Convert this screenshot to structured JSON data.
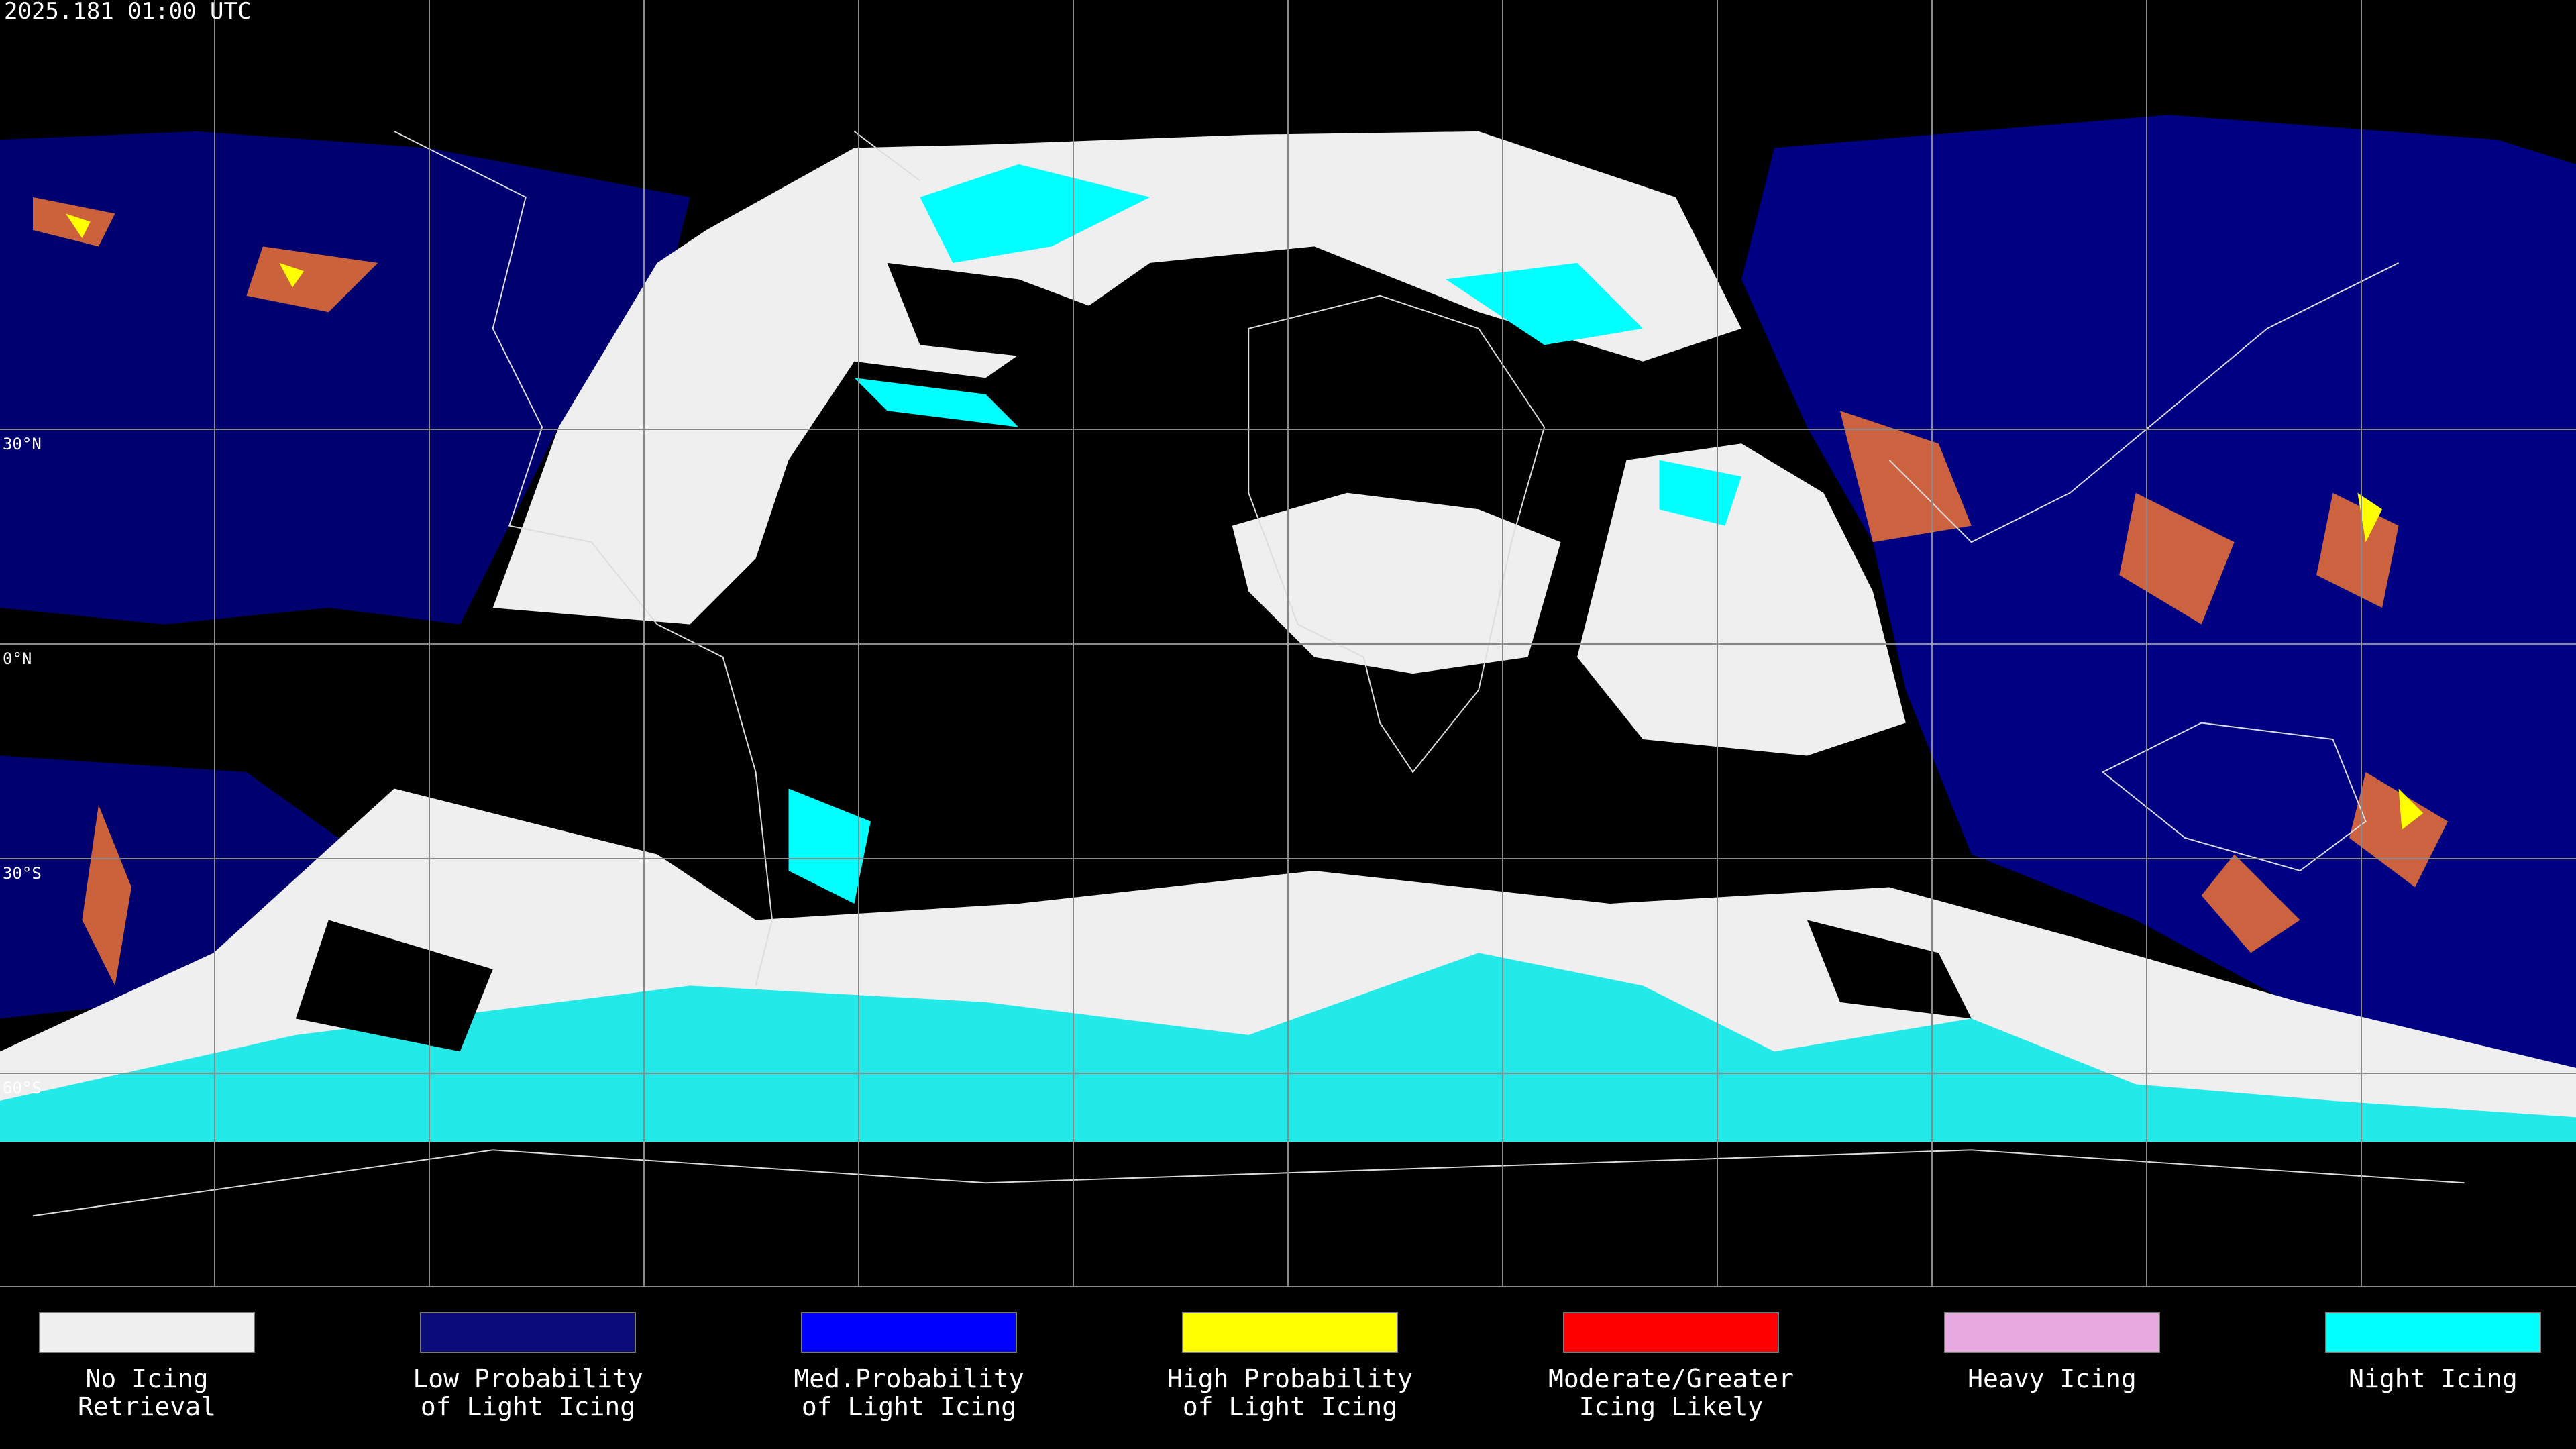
{
  "header": {
    "title": "2025.181 01:00 UTC"
  },
  "map": {
    "latitude_labels": [
      "30°N",
      "0°N",
      "30°S",
      "60°S"
    ]
  },
  "legend": [
    {
      "lines": [
        "No Icing",
        "Retrieval"
      ],
      "color": "#efefef"
    },
    {
      "lines": [
        "Low Probability",
        "of Light Icing"
      ],
      "color": "#0a0a78"
    },
    {
      "lines": [
        "Med.Probability",
        "of Light Icing"
      ],
      "color": "#0000ff"
    },
    {
      "lines": [
        "High Probability",
        "of Light Icing"
      ],
      "color": "#ffff00"
    },
    {
      "lines": [
        "Moderate/Greater",
        "Icing Likely"
      ],
      "color": "#ff0000"
    },
    {
      "lines": [
        "Heavy Icing"
      ],
      "color": "#e8a8e0"
    },
    {
      "lines": [
        "Night Icing"
      ],
      "color": "#00ffff"
    }
  ]
}
